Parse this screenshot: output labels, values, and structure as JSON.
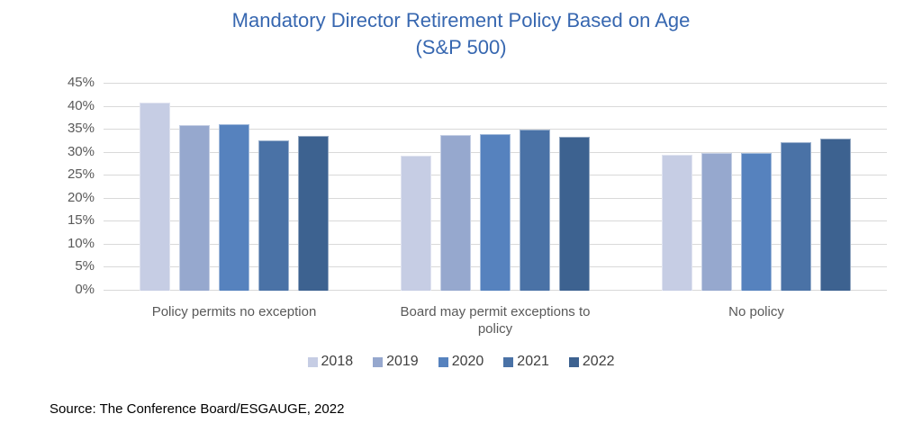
{
  "title": {
    "line1": "Mandatory Director Retirement Policy Based on Age",
    "line2": "(S&P 500)"
  },
  "source": "Source: The Conference Board/ESGAUGE, 2022",
  "colors": {
    "title_text": "#3767B0",
    "axis_text": "#595959",
    "legend_text": "#404040",
    "gridline": "#D9D9D9",
    "background": "#FFFFFF",
    "source_text": "#000000"
  },
  "chart_data": {
    "type": "bar",
    "title": "Mandatory Director Retirement Policy Based on Age (S&P 500)",
    "categories": [
      "Policy permits no exception",
      "Board may permit exceptions to policy",
      "No policy"
    ],
    "series": [
      {
        "name": "2018",
        "color": "#C6CDE4",
        "values": [
          40.8,
          29.4,
          29.6
        ]
      },
      {
        "name": "2019",
        "color": "#96A8CE",
        "values": [
          36.0,
          33.9,
          30.0
        ]
      },
      {
        "name": "2020",
        "color": "#5682BE",
        "values": [
          36.2,
          34.0,
          29.9
        ]
      },
      {
        "name": "2021",
        "color": "#4A72A6",
        "values": [
          32.6,
          35.1,
          32.3
        ]
      },
      {
        "name": "2022",
        "color": "#3D6290",
        "values": [
          33.7,
          33.4,
          33.0
        ]
      }
    ],
    "ylim": [
      0,
      45
    ],
    "yticks": [
      {
        "value": 45,
        "label": "45%"
      },
      {
        "value": 40,
        "label": "40%"
      },
      {
        "value": 35,
        "label": "35%"
      },
      {
        "value": 30,
        "label": "30%"
      },
      {
        "value": 25,
        "label": "25%"
      },
      {
        "value": 20,
        "label": "20%"
      },
      {
        "value": 15,
        "label": "15%"
      },
      {
        "value": 10,
        "label": "10%"
      },
      {
        "value": 5,
        "label": "5%"
      },
      {
        "value": 0,
        "label": "0%"
      }
    ],
    "grid": true,
    "legend_position": "bottom",
    "xlabel": "",
    "ylabel": ""
  }
}
